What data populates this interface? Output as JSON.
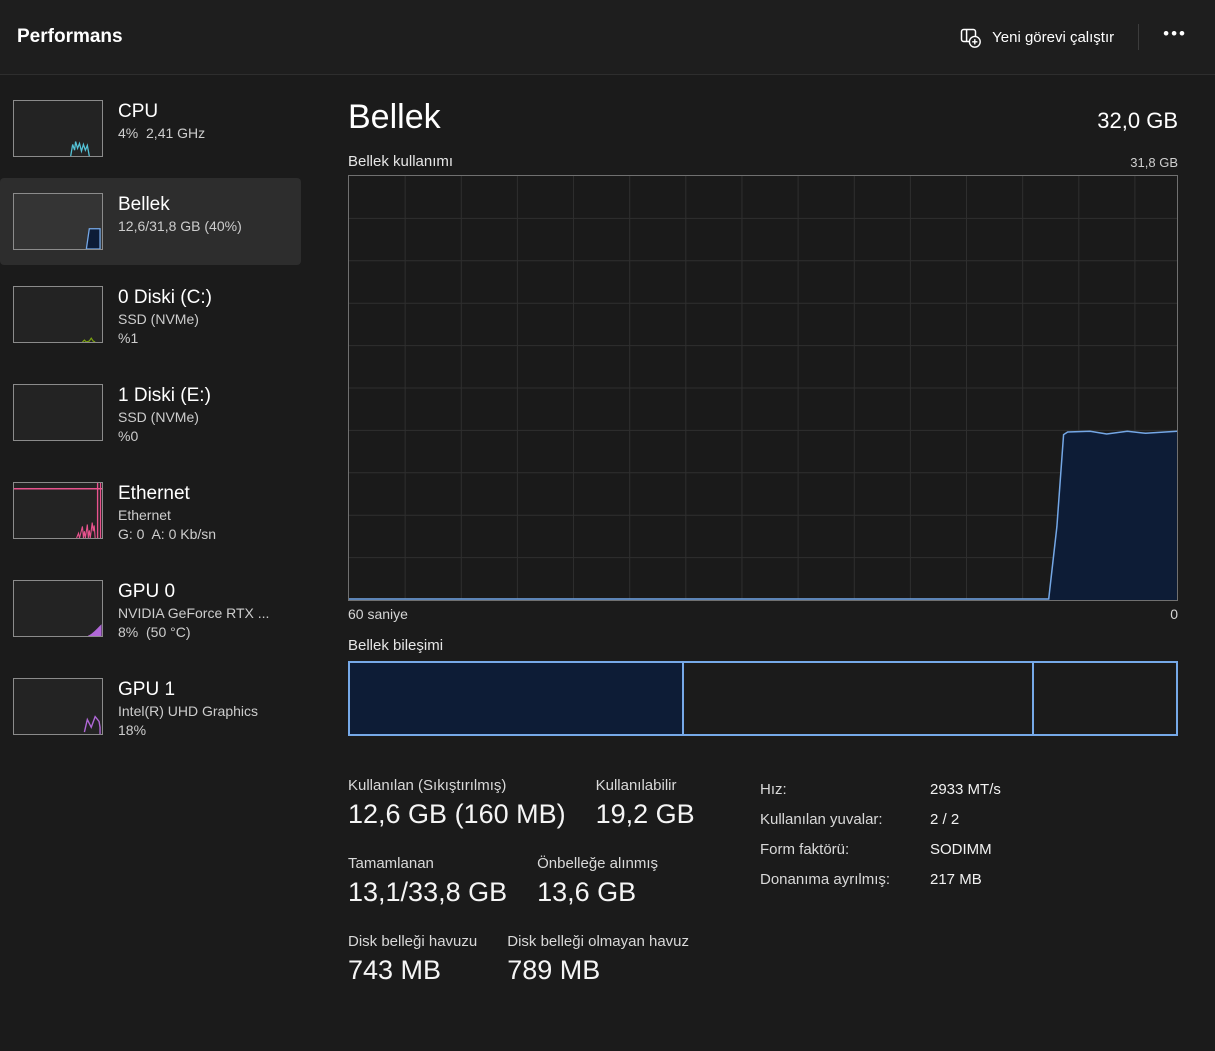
{
  "app": {
    "title": "Performans"
  },
  "toolbar": {
    "run_new_task_label": "Yeni görevi çalıştır",
    "more_label": "•••"
  },
  "colors": {
    "accent_blue_line": "#74a7e6",
    "accent_blue_fill": "#0d1c36",
    "composition_outline": "#76a9e8",
    "cpu_spark": "#54c2d6",
    "disk_spark": "#7da50f",
    "ethernet_spark": "#e8538e",
    "gpu_spark": "#b168d8"
  },
  "sidebar": {
    "items": [
      {
        "id": "cpu",
        "title": "CPU",
        "subs": [
          "4%  2,41 GHz"
        ],
        "spark": "cpu",
        "selected": false
      },
      {
        "id": "memory",
        "title": "Bellek",
        "subs": [
          "12,6/31,8 GB (40%)"
        ],
        "spark": "memory",
        "selected": true
      },
      {
        "id": "disk0",
        "title": "0 Diski (C:)",
        "subs": [
          "SSD (NVMe)",
          "%1"
        ],
        "spark": "disk",
        "selected": false
      },
      {
        "id": "disk1",
        "title": "1 Diski (E:)",
        "subs": [
          "SSD (NVMe)",
          "%0"
        ],
        "spark": "none",
        "selected": false
      },
      {
        "id": "ethernet",
        "title": "Ethernet",
        "subs": [
          "Ethernet",
          "G: 0  A: 0 Kb/sn"
        ],
        "spark": "ethernet",
        "selected": false
      },
      {
        "id": "gpu0",
        "title": "GPU 0",
        "subs": [
          "NVIDIA GeForce RTX ...",
          "8%  (50 °C)"
        ],
        "spark": "gpu0",
        "selected": false
      },
      {
        "id": "gpu1",
        "title": "GPU 1",
        "subs": [
          "Intel(R) UHD Graphics",
          "18%"
        ],
        "spark": "gpu1",
        "selected": false
      }
    ]
  },
  "main": {
    "title": "Bellek",
    "total": "32,0 GB",
    "usage_label": "Bellek kullanımı",
    "usage_max": "31,8 GB",
    "time_span": "60 saniye",
    "time_end": "0",
    "composition_label": "Bellek bileşimi"
  },
  "chart_data": {
    "type": "area",
    "title": "Bellek kullanımı",
    "xlabel_left": "60 saniye",
    "xlabel_right": "0",
    "ylim": [
      0,
      31.8
    ],
    "ymax_label": "31,8 GB",
    "x_span_seconds": 60,
    "grid": {
      "v_spacing_frac": 0.0678,
      "h_rows": 10,
      "grid_color": "#2f2f2f"
    },
    "series": [
      {
        "name": "Kullanılan bellek (GB)",
        "color": "#74a7e6",
        "fill": "#0d1c36",
        "points": [
          [
            0.0,
            0
          ],
          [
            0.845,
            0
          ],
          [
            0.855,
            5.5
          ],
          [
            0.863,
            12.4
          ],
          [
            0.868,
            12.6
          ],
          [
            0.895,
            12.65
          ],
          [
            0.915,
            12.45
          ],
          [
            0.94,
            12.65
          ],
          [
            0.962,
            12.5
          ],
          [
            1.0,
            12.65
          ]
        ]
      }
    ]
  },
  "composition": {
    "segments": [
      {
        "name": "used",
        "fraction": 0.402,
        "filled": true
      },
      {
        "name": "standby",
        "fraction": 0.424,
        "filled": false
      },
      {
        "name": "free",
        "fraction": 0.174,
        "filled": false
      }
    ]
  },
  "stats": {
    "rows": [
      [
        {
          "label": "Kullanılan (Sıkıştırılmış)",
          "value": "12,6 GB (160 MB)"
        },
        {
          "label": "Kullanılabilir",
          "value": "19,2 GB"
        }
      ],
      [
        {
          "label": "Tamamlanan",
          "value": "13,1/33,8 GB"
        },
        {
          "label": "Önbelleğe alınmış",
          "value": "13,6 GB"
        }
      ],
      [
        {
          "label": "Disk belleği havuzu",
          "value": "743 MB"
        },
        {
          "label": "Disk belleği olmayan havuz",
          "value": "789 MB"
        }
      ]
    ],
    "details": [
      {
        "label": "Hız:",
        "value": "2933 MT/s"
      },
      {
        "label": "Kullanılan yuvalar:",
        "value": "2 / 2"
      },
      {
        "label": "Form faktörü:",
        "value": "SODIMM"
      },
      {
        "label": "Donanıma ayrılmış:",
        "value": "217 MB"
      }
    ]
  }
}
